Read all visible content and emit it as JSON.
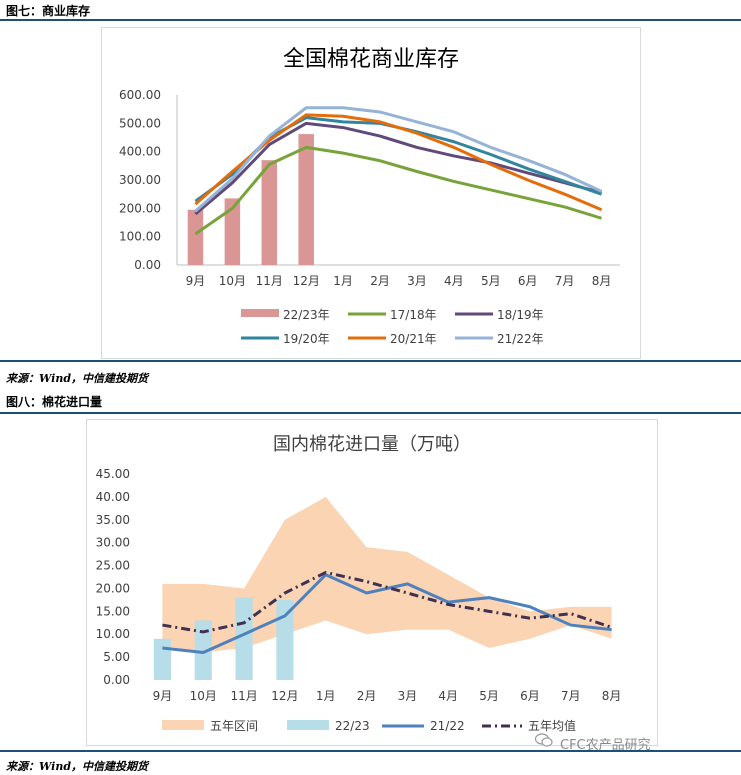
{
  "figure7": {
    "caption": "图七：商业库存",
    "source": "来源：Wind，中信建投期货"
  },
  "figure8": {
    "caption": "图八：棉花进口量",
    "source": "来源：Wind，中信建投期货"
  },
  "watermark": "CFC农产品研究",
  "colors": {
    "rule": "#1f4e79",
    "bar7": "#d99694",
    "s1718": "#77a33a",
    "s1819": "#604a7b",
    "s1920": "#31859c",
    "s2021": "#e46c0a",
    "s2122": "#95b3d7",
    "band": "#fbd4b4",
    "bar8": "#b7dde8",
    "line2122": "#4f81bd",
    "avg": "#403151"
  },
  "chart_data": [
    {
      "type": "bar",
      "title": "全国棉花商业库存",
      "categories": [
        "9月",
        "10月",
        "11月",
        "12月",
        "1月",
        "2月",
        "3月",
        "4月",
        "5月",
        "6月",
        "7月",
        "8月"
      ],
      "yticks": [
        "0.00",
        "100.00",
        "200.00",
        "300.00",
        "400.00",
        "500.00",
        "600.00"
      ],
      "ylim": [
        0,
        600
      ],
      "grid": false,
      "legend_position": "bottom",
      "series": [
        {
          "name": "22/23年",
          "kind": "bar",
          "values": [
            195,
            235,
            370,
            462,
            null,
            null,
            null,
            null,
            null,
            null,
            null,
            null
          ]
        },
        {
          "name": "17/18年",
          "kind": "line",
          "values": [
            110,
            200,
            355,
            415,
            395,
            368,
            330,
            295,
            265,
            235,
            205,
            165
          ]
        },
        {
          "name": "18/19年",
          "kind": "line",
          "values": [
            180,
            290,
            425,
            500,
            485,
            455,
            415,
            385,
            360,
            325,
            290,
            255
          ]
        },
        {
          "name": "19/20年",
          "kind": "line",
          "values": [
            225,
            320,
            450,
            520,
            505,
            500,
            470,
            435,
            390,
            340,
            295,
            250
          ]
        },
        {
          "name": "20/21年",
          "kind": "line",
          "values": [
            215,
            330,
            440,
            530,
            525,
            505,
            465,
            415,
            355,
            300,
            250,
            195
          ]
        },
        {
          "name": "21/22年",
          "kind": "line",
          "values": [
            190,
            305,
            455,
            555,
            555,
            540,
            505,
            470,
            415,
            370,
            320,
            260
          ]
        }
      ]
    },
    {
      "type": "line",
      "title": "国内棉花进口量（万吨）",
      "categories": [
        "9月",
        "10月",
        "11月",
        "12月",
        "1月",
        "2月",
        "3月",
        "4月",
        "5月",
        "6月",
        "7月",
        "8月"
      ],
      "yticks": [
        "0.00",
        "5.00",
        "10.00",
        "15.00",
        "20.00",
        "25.00",
        "30.00",
        "35.00",
        "40.00",
        "45.00"
      ],
      "ylim": [
        0,
        45
      ],
      "grid": false,
      "legend_position": "bottom",
      "series": [
        {
          "name": "五年区间",
          "kind": "band",
          "low": [
            7.5,
            6,
            7,
            10,
            13,
            10,
            11,
            11,
            7,
            9,
            12,
            9
          ],
          "high": [
            21,
            21,
            20,
            35,
            40,
            29,
            28,
            23,
            18,
            15,
            16,
            16
          ]
        },
        {
          "name": "22/23",
          "kind": "bar",
          "values": [
            9,
            13,
            18,
            17.5,
            null,
            null,
            null,
            null,
            null,
            null,
            null,
            null
          ]
        },
        {
          "name": "21/22",
          "kind": "line",
          "values": [
            7,
            6,
            10,
            14,
            23,
            19,
            21,
            17,
            18,
            16,
            12,
            11
          ]
        },
        {
          "name": "五年均值",
          "kind": "dashdot",
          "values": [
            12,
            10.5,
            12.5,
            19,
            23.5,
            21.5,
            19,
            16.5,
            15,
            13.5,
            14.5,
            11.5
          ]
        }
      ]
    }
  ]
}
